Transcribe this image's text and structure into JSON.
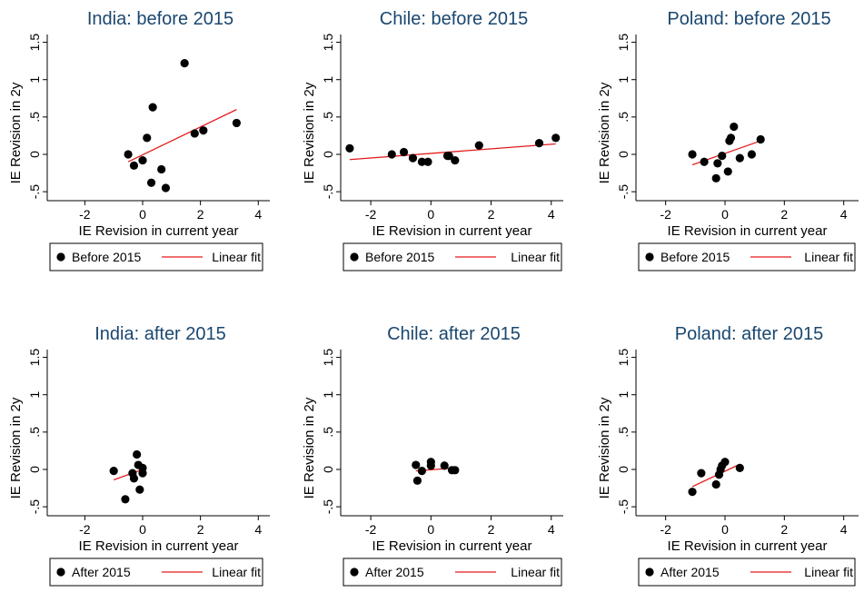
{
  "style": {
    "title_color": "#1a476f",
    "fit_color": "#e41a1c",
    "point_color": "#000000"
  },
  "chart_data": [
    {
      "type": "scatter",
      "title": "India: before 2015",
      "xlabel": "IE Revision in current year",
      "ylabel": "IE Revision in 2y",
      "xticks": [
        "-2",
        "0",
        "2",
        "4"
      ],
      "yticks": [
        "-.5",
        "0",
        ".5",
        "1",
        "1.5"
      ],
      "xlim": [
        -3.3,
        4.4
      ],
      "ylim": [
        -0.62,
        1.58
      ],
      "legend": {
        "point_label": "Before 2015",
        "line_label": "Linear fit"
      },
      "points": [
        [
          -0.5,
          0.0
        ],
        [
          -0.3,
          -0.15
        ],
        [
          0.0,
          -0.08
        ],
        [
          0.15,
          0.22
        ],
        [
          0.3,
          -0.38
        ],
        [
          0.35,
          0.63
        ],
        [
          0.65,
          -0.2
        ],
        [
          0.8,
          -0.45
        ],
        [
          1.45,
          1.22
        ],
        [
          1.8,
          0.28
        ],
        [
          2.1,
          0.32
        ],
        [
          3.25,
          0.42
        ]
      ],
      "fit": [
        [
          -0.5,
          -0.1
        ],
        [
          3.25,
          0.6
        ]
      ]
    },
    {
      "type": "scatter",
      "title": "Chile: before 2015",
      "xlabel": "IE Revision in current year",
      "ylabel": "IE Revision in 2y",
      "xticks": [
        "-2",
        "0",
        "2",
        "4"
      ],
      "yticks": [
        "-.5",
        "0",
        ".5",
        "1",
        "1.5"
      ],
      "xlim": [
        -3.0,
        4.4
      ],
      "ylim": [
        -0.62,
        1.58
      ],
      "legend": {
        "point_label": "Before 2015",
        "line_label": "Linear fit"
      },
      "points": [
        [
          -2.7,
          0.08
        ],
        [
          -1.3,
          0.0
        ],
        [
          -0.9,
          0.03
        ],
        [
          -0.6,
          -0.05
        ],
        [
          -0.3,
          -0.1
        ],
        [
          -0.1,
          -0.1
        ],
        [
          0.55,
          -0.02
        ],
        [
          0.6,
          -0.02
        ],
        [
          0.8,
          -0.08
        ],
        [
          1.6,
          0.12
        ],
        [
          3.6,
          0.15
        ],
        [
          4.15,
          0.22
        ]
      ],
      "fit": [
        [
          -2.7,
          -0.07
        ],
        [
          4.15,
          0.14
        ]
      ]
    },
    {
      "type": "scatter",
      "title": "Poland: before 2015",
      "xlabel": "IE Revision in current year",
      "ylabel": "IE Revision in 2y",
      "xticks": [
        "-2",
        "0",
        "2",
        "4"
      ],
      "yticks": [
        "-.5",
        "0",
        ".5",
        "1",
        "1.5"
      ],
      "xlim": [
        -3.0,
        4.5
      ],
      "ylim": [
        -0.62,
        1.58
      ],
      "legend": {
        "point_label": "Before 2015",
        "line_label": "Linear fit"
      },
      "points": [
        [
          -1.1,
          0.0
        ],
        [
          -0.7,
          -0.1
        ],
        [
          -0.3,
          -0.32
        ],
        [
          -0.25,
          -0.12
        ],
        [
          -0.1,
          -0.02
        ],
        [
          0.1,
          -0.23
        ],
        [
          0.15,
          0.18
        ],
        [
          0.2,
          0.22
        ],
        [
          0.3,
          0.37
        ],
        [
          0.5,
          -0.05
        ],
        [
          0.9,
          0.0
        ],
        [
          1.2,
          0.2
        ]
      ],
      "fit": [
        [
          -1.1,
          -0.14
        ],
        [
          1.2,
          0.18
        ]
      ]
    },
    {
      "type": "scatter",
      "title": "India: after 2015",
      "xlabel": "IE Revision in current year",
      "ylabel": "IE Revision in 2y",
      "xticks": [
        "-2",
        "0",
        "2",
        "4"
      ],
      "yticks": [
        "-.5",
        "0",
        ".5",
        "1",
        "1.5"
      ],
      "xlim": [
        -3.3,
        4.4
      ],
      "ylim": [
        -0.62,
        1.58
      ],
      "legend": {
        "point_label": "After 2015",
        "line_label": "Linear fit"
      },
      "points": [
        [
          -1.0,
          -0.02
        ],
        [
          -0.6,
          -0.4
        ],
        [
          -0.35,
          -0.05
        ],
        [
          -0.3,
          -0.12
        ],
        [
          -0.2,
          0.2
        ],
        [
          -0.15,
          0.06
        ],
        [
          -0.1,
          -0.27
        ],
        [
          0.0,
          0.02
        ],
        [
          0.0,
          -0.05
        ]
      ],
      "fit": [
        [
          -1.0,
          -0.14
        ],
        [
          0.0,
          0.0
        ]
      ]
    },
    {
      "type": "scatter",
      "title": "Chile: after 2015",
      "xlabel": "IE Revision in current year",
      "ylabel": "IE Revision in 2y",
      "xticks": [
        "-2",
        "0",
        "2",
        "4"
      ],
      "yticks": [
        "-.5",
        "0",
        ".5",
        "1",
        "1.5"
      ],
      "xlim": [
        -3.0,
        4.4
      ],
      "ylim": [
        -0.62,
        1.58
      ],
      "legend": {
        "point_label": "After 2015",
        "line_label": "Linear fit"
      },
      "points": [
        [
          -0.5,
          0.06
        ],
        [
          -0.45,
          -0.15
        ],
        [
          -0.3,
          -0.02
        ],
        [
          0.0,
          0.1
        ],
        [
          0.0,
          0.05
        ],
        [
          0.45,
          0.05
        ],
        [
          0.7,
          -0.01
        ],
        [
          0.8,
          -0.01
        ]
      ],
      "fit": [
        [
          -0.5,
          -0.02
        ],
        [
          0.8,
          0.02
        ]
      ]
    },
    {
      "type": "scatter",
      "title": "Poland: after 2015",
      "xlabel": "IE Revision in current year",
      "ylabel": "IE Revision in 2y",
      "xticks": [
        "-2",
        "0",
        "2",
        "4"
      ],
      "yticks": [
        "-.5",
        "0",
        ".5",
        "1",
        "1.5"
      ],
      "xlim": [
        -3.0,
        4.5
      ],
      "ylim": [
        -0.62,
        1.58
      ],
      "legend": {
        "point_label": "After 2015",
        "line_label": "Linear fit"
      },
      "points": [
        [
          -1.1,
          -0.3
        ],
        [
          -0.8,
          -0.05
        ],
        [
          -0.3,
          -0.2
        ],
        [
          -0.2,
          -0.07
        ],
        [
          -0.15,
          0.0
        ],
        [
          -0.1,
          0.05
        ],
        [
          0.0,
          0.1
        ],
        [
          0.5,
          0.02
        ]
      ],
      "fit": [
        [
          -1.1,
          -0.23
        ],
        [
          0.5,
          0.07
        ]
      ]
    }
  ]
}
